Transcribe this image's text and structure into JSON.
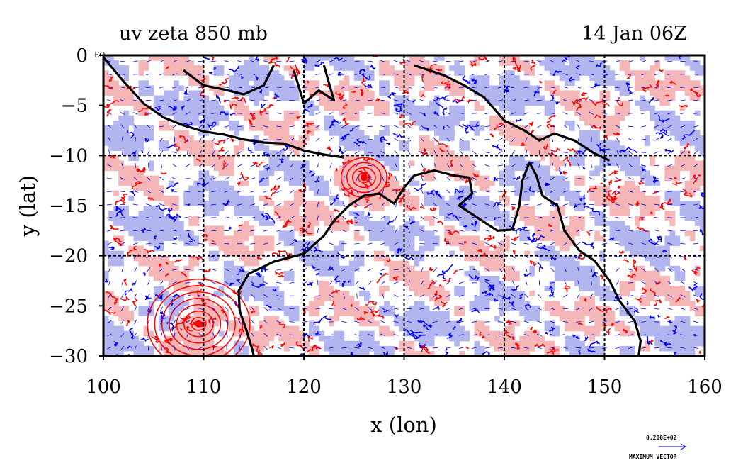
{
  "chart_data": {
    "type": "map",
    "title_left": "uv zeta 850 mb",
    "title_right": "14 Jan 06Z",
    "xlabel": "x (lon)",
    "ylabel": "y (lat)",
    "xlim": [
      100,
      160
    ],
    "ylim": [
      -30,
      0
    ],
    "x_ticks": [
      100,
      110,
      120,
      130,
      140,
      150,
      160
    ],
    "y_ticks": [
      0,
      -5,
      -10,
      -15,
      -20,
      -25,
      -30
    ],
    "y_tick_labels": [
      "0",
      "−5",
      "−10",
      "−15",
      "−20",
      "−25",
      "−30"
    ],
    "corner_label": "EQ",
    "gridlines": {
      "lon": [
        110,
        120,
        130,
        140,
        150
      ],
      "lat": [
        -10,
        -20
      ],
      "style": "dashed black"
    },
    "fields": {
      "vorticity_positive_color": "#f4b6b6",
      "vorticity_positive_contour": "#ff0000",
      "vorticity_negative_color": "#b3b6ee",
      "vorticity_negative_contour": "#0000ff",
      "wind_vector_color": "#0000ff",
      "coastline_color": "#000000"
    },
    "cyclone_centers": [
      {
        "lon": 109.5,
        "lat": -26.8,
        "sign": "positive"
      },
      {
        "lon": 126,
        "lat": -12.2,
        "sign": "positive"
      }
    ],
    "vector_key": {
      "value": "0.200E+02",
      "label": "MAXIMUM VECTOR"
    }
  }
}
